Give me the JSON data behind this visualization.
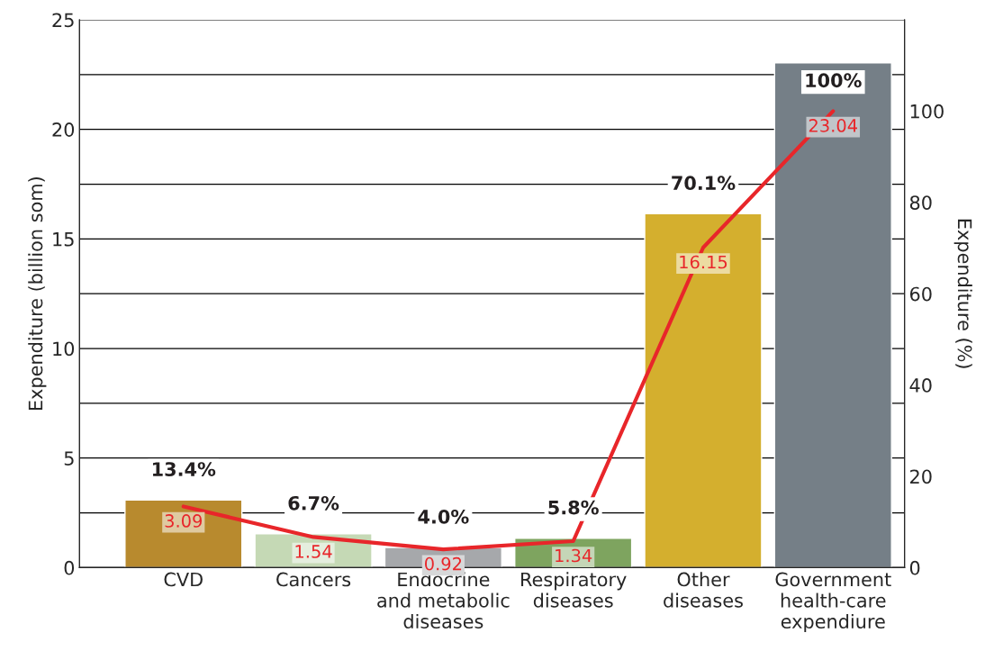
{
  "chart_data": {
    "type": "bar",
    "categories": [
      "CVD",
      "Cancers",
      "Endocrine\nand metabolic\ndiseases",
      "Respiratory\ndiseases",
      "Other\ndiseases",
      "Government\nhealth-care\nexpendiure"
    ],
    "series": [
      {
        "type": "bar",
        "colors": [
          "#b88a2e",
          "#c5d9b5",
          "#a6a8ab",
          "#7ea45f",
          "#d4af2e",
          "#757f87"
        ],
        "values": [
          3.09,
          1.54,
          0.92,
          1.34,
          16.15,
          23.04
        ],
        "value_labels": [
          "3.09",
          "1.54",
          "0.92",
          "1.34",
          "16.15",
          "23.04"
        ]
      },
      {
        "type": "line",
        "axis": "y2",
        "color": "#e8262a",
        "values": [
          13.4,
          6.7,
          4.0,
          5.8,
          70.1,
          100
        ],
        "value_labels": [
          "13.4%",
          "6.7%",
          "4.0%",
          "5.8%",
          "70.1%",
          "100%"
        ]
      }
    ],
    "ylabel": "Expenditure (billion som)",
    "y2label": "Expenditure (%)",
    "ylim": [
      0,
      25
    ],
    "yticks": [
      0,
      {
        "value": 2.5,
        "label": null
      },
      5,
      {
        "value": 7.5,
        "label": null
      },
      10,
      {
        "value": 12.5,
        "label": null
      },
      15,
      {
        "value": 17.5,
        "label": null
      },
      20,
      {
        "value": 22.5,
        "label": null
      },
      25
    ],
    "y2lim": [
      0,
      120
    ],
    "y2ticks": [
      0,
      20,
      40,
      60,
      80,
      100
    ],
    "grid": "y",
    "legend": false,
    "marker": "none",
    "line_style": "solid"
  }
}
